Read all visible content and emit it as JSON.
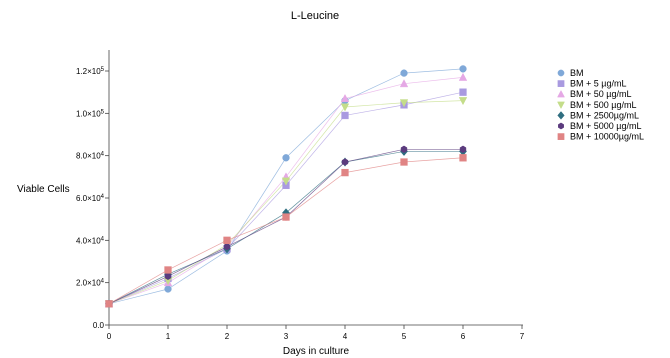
{
  "chart_data": {
    "type": "line",
    "title": "L-Leucine",
    "xlabel": "Days in culture",
    "ylabel": "Viable Cells",
    "xlim": [
      0,
      7
    ],
    "ylim": [
      0,
      120000
    ],
    "x_ticks": [
      0,
      1,
      2,
      3,
      4,
      5,
      6,
      7
    ],
    "x_tick_labels": [
      "0",
      "1",
      "2",
      "3",
      "4",
      "5",
      "6",
      "7"
    ],
    "y_ticks": [
      0,
      20000,
      40000,
      60000,
      80000,
      100000,
      120000
    ],
    "y_tick_labels": [
      {
        "mantissa": "0.0",
        "exp": ""
      },
      {
        "mantissa": "2.0×10",
        "exp": "4"
      },
      {
        "mantissa": "4.0×10",
        "exp": "4"
      },
      {
        "mantissa": "6.0×10",
        "exp": "4"
      },
      {
        "mantissa": "8.0×10",
        "exp": "4"
      },
      {
        "mantissa": "1.0×10",
        "exp": "5"
      },
      {
        "mantissa": "1.2×10",
        "exp": "5"
      }
    ],
    "grid": false,
    "legend_position": "right",
    "x": [
      0,
      1,
      2,
      3,
      4,
      5,
      6
    ],
    "series": [
      {
        "name": "BM",
        "color": "#7fa8d8",
        "marker": "circle",
        "values": [
          10000,
          17000,
          35000,
          79000,
          106000,
          119000,
          121000
        ]
      },
      {
        "name": "BM + 5 µg/mL",
        "color": "#a99ae0",
        "marker": "square",
        "values": [
          10000,
          22000,
          36000,
          66000,
          99000,
          104000,
          110000
        ]
      },
      {
        "name": "BM + 50 µg/mL",
        "color": "#e5a8e5",
        "marker": "triangle-up",
        "values": [
          10000,
          20000,
          37000,
          70000,
          107000,
          114000,
          117000
        ]
      },
      {
        "name": "BM + 500 µg/mL",
        "color": "#c4dd8a",
        "marker": "triangle-down",
        "values": [
          10000,
          21000,
          38000,
          68000,
          103000,
          105000,
          106000
        ]
      },
      {
        "name": "BM + 2500µg/mL",
        "color": "#2f6e80",
        "marker": "diamond",
        "values": [
          10000,
          24000,
          36000,
          53000,
          77000,
          82000,
          82000
        ]
      },
      {
        "name": "BM + 5000 µg/mL",
        "color": "#5b3b7e",
        "marker": "hexagon",
        "values": [
          10000,
          23000,
          37000,
          51000,
          77000,
          83000,
          83000
        ]
      },
      {
        "name": "BM + 10000µg/mL",
        "color": "#e08484",
        "marker": "square",
        "values": [
          10000,
          26000,
          40000,
          51000,
          72000,
          77000,
          79000
        ]
      }
    ]
  }
}
